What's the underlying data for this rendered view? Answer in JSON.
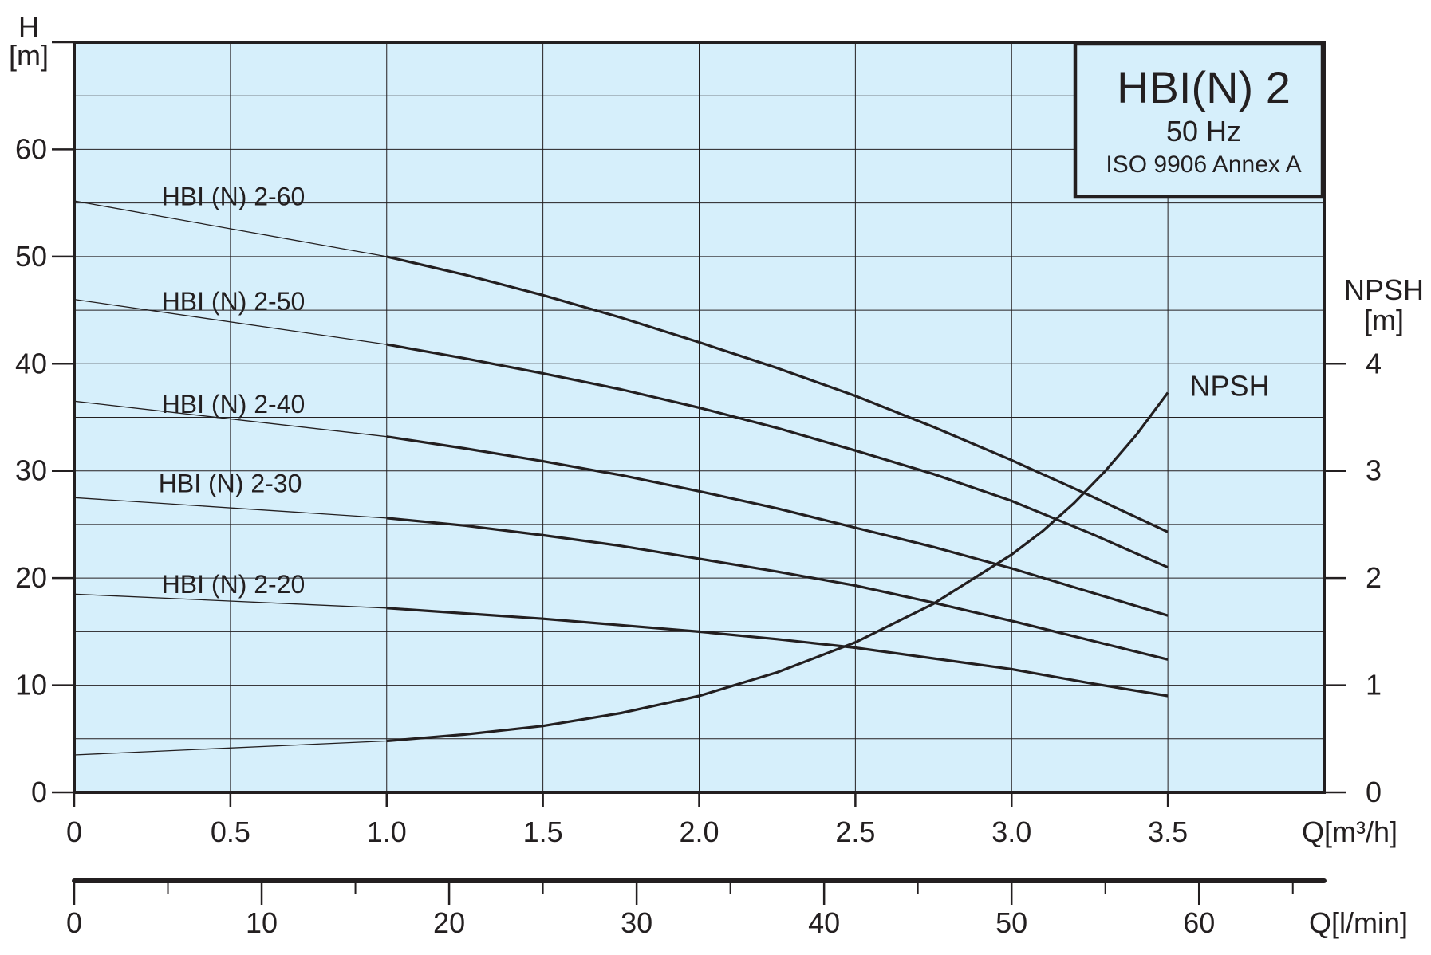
{
  "chart_data": {
    "type": "line",
    "legend_box": {
      "title": "HBI(N) 2",
      "line1": "50 Hz",
      "line2": "ISO 9906 Annex A",
      "placement": "top-right"
    },
    "colors": {
      "plot_background": "#d6effb",
      "grid": "#231f20",
      "curve": "#231f20",
      "frame": "#231f20"
    },
    "grid": true,
    "x_axis": {
      "label": "Q[m³/h]",
      "range": [
        0,
        4.0
      ],
      "ticks": [
        0,
        0.5,
        1.0,
        1.5,
        2.0,
        2.5,
        3.0,
        3.5
      ],
      "tick_labels": [
        "0",
        "0.5",
        "1.0",
        "1.5",
        "2.0",
        "2.5",
        "3.0",
        "3.5"
      ]
    },
    "x2_axis": {
      "label": "Q[l/min]",
      "range": [
        0,
        66.67
      ],
      "ticks": [
        0,
        10,
        20,
        30,
        40,
        50,
        60
      ],
      "tick_labels": [
        "0",
        "10",
        "20",
        "30",
        "40",
        "50",
        "60"
      ],
      "minor_ticks": [
        5,
        15,
        25,
        35,
        45,
        55,
        65
      ]
    },
    "y_axis": {
      "label_line1": "H",
      "label_line2": "[m]",
      "range": [
        0,
        70
      ],
      "ticks": [
        0,
        10,
        20,
        30,
        40,
        50,
        60
      ],
      "tick_labels": [
        "0",
        "10",
        "20",
        "30",
        "40",
        "50",
        "60"
      ]
    },
    "y2_axis": {
      "label_line1": "NPSH",
      "label_line2": "[m]",
      "range": [
        0,
        7
      ],
      "ticks": [
        0,
        1,
        2,
        3,
        4
      ],
      "tick_labels": [
        "0",
        "1",
        "2",
        "3",
        "4"
      ]
    },
    "series": [
      {
        "name": "HBI (N) 2-60",
        "label_anchor": [
          0.28,
          54.8
        ],
        "thin": {
          "x": [
            0,
            1.0
          ],
          "y": [
            55.2,
            50.0
          ]
        },
        "thick": {
          "x": [
            1.0,
            1.25,
            1.5,
            1.75,
            2.0,
            2.25,
            2.5,
            2.75,
            3.0,
            3.25,
            3.5
          ],
          "y": [
            50.0,
            48.3,
            46.4,
            44.3,
            42.0,
            39.6,
            37.0,
            34.1,
            31.0,
            27.7,
            24.3
          ]
        }
      },
      {
        "name": "HBI (N) 2-50",
        "label_anchor": [
          0.28,
          45.0
        ],
        "thin": {
          "x": [
            0,
            1.0
          ],
          "y": [
            46.0,
            41.8
          ]
        },
        "thick": {
          "x": [
            1.0,
            1.25,
            1.5,
            1.75,
            2.0,
            2.25,
            2.5,
            2.75,
            3.0,
            3.25,
            3.5
          ],
          "y": [
            41.8,
            40.5,
            39.1,
            37.6,
            35.9,
            34.0,
            31.9,
            29.7,
            27.2,
            24.2,
            21.0
          ]
        }
      },
      {
        "name": "HBI (N) 2-40",
        "label_anchor": [
          0.28,
          35.4
        ],
        "thin": {
          "x": [
            0,
            1.0
          ],
          "y": [
            36.5,
            33.2
          ]
        },
        "thick": {
          "x": [
            1.0,
            1.25,
            1.5,
            1.75,
            2.0,
            2.25,
            2.5,
            2.75,
            3.0,
            3.25,
            3.5
          ],
          "y": [
            33.2,
            32.1,
            30.9,
            29.6,
            28.1,
            26.5,
            24.7,
            22.9,
            20.9,
            18.7,
            16.5
          ]
        }
      },
      {
        "name": "HBI (N) 2-30",
        "label_anchor": [
          0.27,
          28.0
        ],
        "thin": {
          "x": [
            0,
            1.0
          ],
          "y": [
            27.5,
            25.6
          ]
        },
        "thick": {
          "x": [
            1.0,
            1.25,
            1.5,
            1.75,
            2.0,
            2.25,
            2.5,
            2.75,
            3.0,
            3.25,
            3.5
          ],
          "y": [
            25.6,
            24.9,
            24.0,
            23.0,
            21.8,
            20.6,
            19.3,
            17.7,
            16.0,
            14.2,
            12.4
          ]
        }
      },
      {
        "name": "HBI (N) 2-20",
        "label_anchor": [
          0.28,
          18.6
        ],
        "thin": {
          "x": [
            0,
            1.0
          ],
          "y": [
            18.5,
            17.2
          ]
        },
        "thick": {
          "x": [
            1.0,
            1.25,
            1.5,
            1.75,
            2.0,
            2.25,
            2.5,
            2.75,
            3.0,
            3.25,
            3.5
          ],
          "y": [
            17.2,
            16.7,
            16.2,
            15.6,
            15.0,
            14.3,
            13.5,
            12.5,
            11.5,
            10.2,
            9.0
          ]
        }
      },
      {
        "name": "NPSH",
        "axis": "y2",
        "label_anchor": [
          3.57,
          3.7
        ],
        "thin": {
          "x": [
            0,
            1.0
          ],
          "y": [
            0.35,
            0.48
          ]
        },
        "thick": {
          "x": [
            1.0,
            1.25,
            1.5,
            1.75,
            2.0,
            2.25,
            2.5,
            2.75,
            3.0,
            3.1,
            3.2,
            3.3,
            3.4,
            3.5
          ],
          "y": [
            0.48,
            0.54,
            0.62,
            0.74,
            0.9,
            1.12,
            1.4,
            1.76,
            2.22,
            2.44,
            2.7,
            3.0,
            3.34,
            3.73
          ]
        }
      }
    ]
  }
}
